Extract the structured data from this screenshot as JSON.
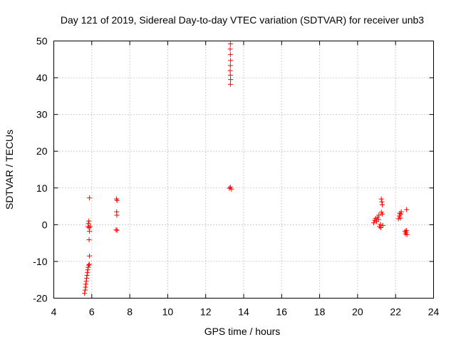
{
  "chart_data": {
    "type": "scatter",
    "title": "Day 121 of 2019, Sidereal Day-to-day VTEC variation (SDTVAR) for receiver unb3",
    "xlabel": "GPS time / hours",
    "ylabel": "SDTVAR / TECUs",
    "xlim": [
      4,
      24
    ],
    "ylim": [
      -20,
      50
    ],
    "xticks": [
      "4",
      "6",
      "8",
      "10",
      "12",
      "14",
      "16",
      "18",
      "20",
      "22",
      "24"
    ],
    "yticks": [
      "-20",
      "-10",
      "0",
      "10",
      "20",
      "30",
      "40",
      "50"
    ],
    "grid": true,
    "marker": "plus",
    "color": "#ff0000",
    "series": [
      {
        "name": "SDTVAR",
        "points": [
          [
            5.62,
            -18.7
          ],
          [
            5.65,
            -17.8
          ],
          [
            5.67,
            -17.0
          ],
          [
            5.69,
            -16.2
          ],
          [
            5.71,
            -15.4
          ],
          [
            5.73,
            -14.6
          ],
          [
            5.75,
            -13.8
          ],
          [
            5.77,
            -13.0
          ],
          [
            5.79,
            -12.3
          ],
          [
            5.81,
            -11.6
          ],
          [
            5.84,
            -11.0
          ],
          [
            5.87,
            -10.8
          ],
          [
            5.88,
            -8.5
          ],
          [
            5.86,
            -4.1
          ],
          [
            5.88,
            -1.8
          ],
          [
            5.8,
            -0.5
          ],
          [
            5.86,
            -0.8
          ],
          [
            5.92,
            -0.5
          ],
          [
            5.82,
            0.3
          ],
          [
            5.85,
            1.0
          ],
          [
            5.88,
            7.3
          ],
          [
            7.3,
            7.0
          ],
          [
            7.33,
            6.6
          ],
          [
            7.31,
            3.5
          ],
          [
            7.32,
            2.6
          ],
          [
            7.28,
            -1.4
          ],
          [
            7.33,
            -1.5
          ],
          [
            13.25,
            9.9
          ],
          [
            13.3,
            10.2
          ],
          [
            13.36,
            9.7
          ],
          [
            13.3,
            38.2
          ],
          [
            13.31,
            39.5
          ],
          [
            13.3,
            40.7
          ],
          [
            13.29,
            41.9
          ],
          [
            13.3,
            43.3
          ],
          [
            13.31,
            44.7
          ],
          [
            13.3,
            46.3
          ],
          [
            13.29,
            47.8
          ],
          [
            13.3,
            49.2
          ],
          [
            20.85,
            0.5
          ],
          [
            20.9,
            1.2
          ],
          [
            20.95,
            1.7
          ],
          [
            21.0,
            0.9
          ],
          [
            21.05,
            2.0
          ],
          [
            21.1,
            1.4
          ],
          [
            21.12,
            2.6
          ],
          [
            21.15,
            -0.5
          ],
          [
            21.2,
            0.1
          ],
          [
            21.22,
            -0.8
          ],
          [
            21.25,
            7.0
          ],
          [
            21.28,
            6.2
          ],
          [
            21.3,
            5.4
          ],
          [
            21.25,
            3.4
          ],
          [
            21.3,
            2.9
          ],
          [
            21.33,
            -0.2
          ],
          [
            22.15,
            1.6
          ],
          [
            22.2,
            2.4
          ],
          [
            22.22,
            3.1
          ],
          [
            22.25,
            1.8
          ],
          [
            22.28,
            2.9
          ],
          [
            22.3,
            3.5
          ],
          [
            22.5,
            -1.8
          ],
          [
            22.52,
            -2.5
          ],
          [
            22.55,
            -2.1
          ],
          [
            22.58,
            -1.6
          ],
          [
            22.6,
            -2.7
          ],
          [
            22.58,
            4.1
          ]
        ]
      }
    ]
  }
}
